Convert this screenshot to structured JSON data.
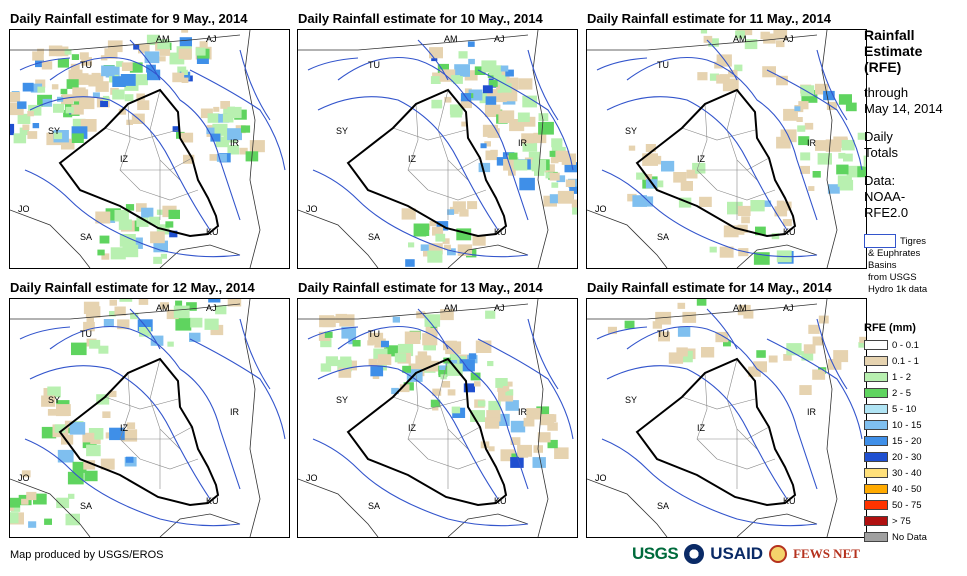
{
  "panels": [
    {
      "title": "Daily Rainfall estimate for 9 May., 2014",
      "intensity": 1.0,
      "focus": "northwest"
    },
    {
      "title": "Daily Rainfall estimate for 10 May., 2014",
      "intensity": 0.9,
      "focus": "east"
    },
    {
      "title": "Daily Rainfall estimate for 11 May., 2014",
      "intensity": 0.7,
      "focus": "north-southeast"
    },
    {
      "title": "Daily Rainfall estimate for 12 May., 2014",
      "intensity": 0.6,
      "focus": "north-west-center"
    },
    {
      "title": "Daily Rainfall estimate for 13 May., 2014",
      "intensity": 0.8,
      "focus": "north-central"
    },
    {
      "title": "Daily Rainfall estimate for 14 May., 2014",
      "intensity": 0.3,
      "focus": "north"
    }
  ],
  "map_labels": [
    "TU",
    "AM",
    "AJ",
    "SY",
    "IZ",
    "IR",
    "JO",
    "SA",
    "KU"
  ],
  "sidebar": {
    "title_lines": [
      "Rainfall",
      "Estimate",
      "(RFE)"
    ],
    "through": "through",
    "date": "May 14, 2014",
    "daily_totals": [
      "Daily",
      "Totals"
    ],
    "data_label": "Data:",
    "data_source": [
      "NOAA-",
      "RFE2.0"
    ]
  },
  "basins": {
    "lines": [
      "Tigres",
      "& Euphrates",
      "Basins",
      "from USGS",
      "Hydro 1k data"
    ],
    "color": "#3355cc"
  },
  "legend": {
    "title": "RFE (mm)",
    "items": [
      {
        "label": "0 - 0.1",
        "color": "#ffffff"
      },
      {
        "label": "0.1 - 1",
        "color": "#e6d3b0"
      },
      {
        "label": "1 - 2",
        "color": "#b8f0b0"
      },
      {
        "label": "2 - 5",
        "color": "#5fd45f"
      },
      {
        "label": "5 - 10",
        "color": "#b0e4f4"
      },
      {
        "label": "10 - 15",
        "color": "#7fbfef"
      },
      {
        "label": "15 - 20",
        "color": "#3f8fe8"
      },
      {
        "label": "20 - 30",
        "color": "#1f4fd0"
      },
      {
        "label": "30 - 40",
        "color": "#ffe07a"
      },
      {
        "label": "40 - 50",
        "color": "#ffaa00"
      },
      {
        "label": "50 - 75",
        "color": "#ff3300"
      },
      {
        "label": "> 75",
        "color": "#b01010"
      },
      {
        "label": "No Data",
        "color": "#a0a0a0"
      }
    ]
  },
  "footer": {
    "credit": "Map produced by USGS/EROS"
  },
  "logos": {
    "usgs": "USGS",
    "usaid": "USAID",
    "fews": "FEWS NET"
  }
}
